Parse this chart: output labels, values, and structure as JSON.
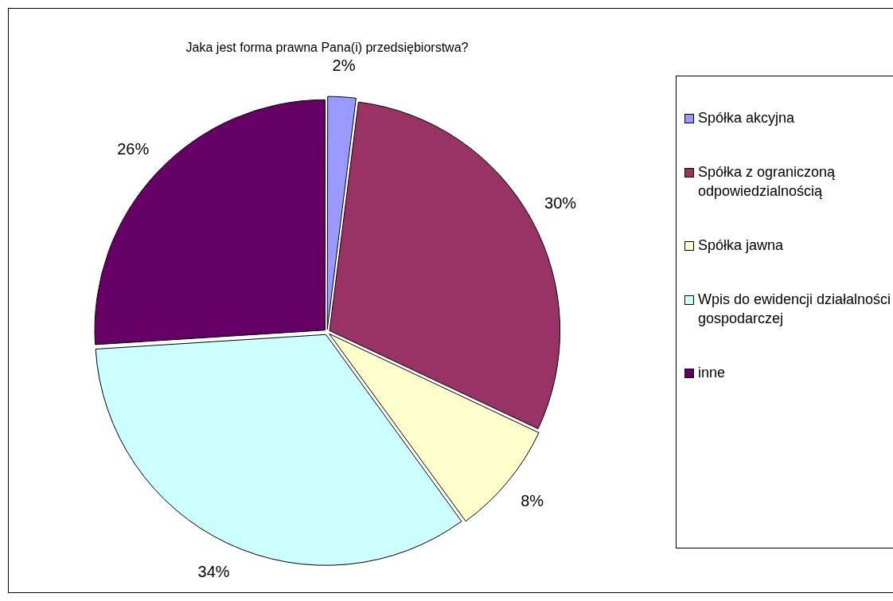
{
  "chart_data": {
    "type": "pie",
    "title": "Jaka jest forma prawna Pana(i) przedsiębiorstwa?",
    "categories": [
      "Spółka akcyjna",
      "Spółka z ograniczoną odpowiedzialnością",
      "Spółka jawna",
      "Wpis do ewidencji działalności gospodarczej",
      "inne"
    ],
    "values": [
      2,
      30,
      8,
      34,
      26
    ],
    "colors": [
      "#9999ff",
      "#993366",
      "#ffffcc",
      "#ccffff",
      "#660066"
    ],
    "value_labels": [
      "2%",
      "30%",
      "8%",
      "34%",
      "26%"
    ],
    "legend": "right"
  }
}
